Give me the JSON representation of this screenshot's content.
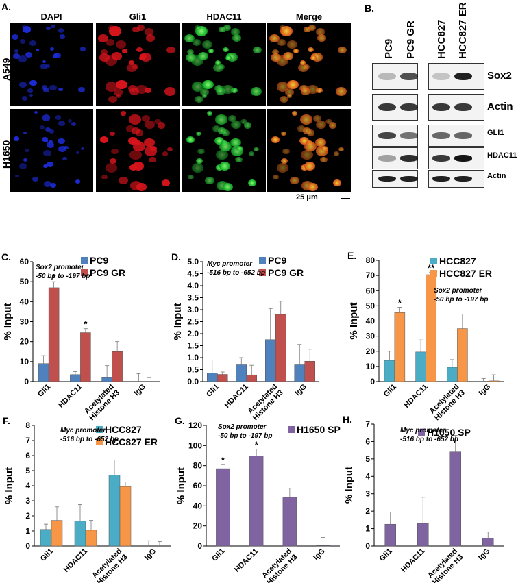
{
  "panel_a": {
    "label": "A.",
    "columns": [
      "DAPI",
      "Gli1",
      "HDAC11",
      "Merge"
    ],
    "rows": [
      "A549",
      "H1650"
    ],
    "scale": "25 μm"
  },
  "panel_b": {
    "label": "B.",
    "lanes": [
      "PC9",
      "PC9 GR",
      "HCC827",
      "HCC827 ER"
    ],
    "blots": [
      {
        "label": "Sox2",
        "bands": [
          0.25,
          0.7,
          0.2,
          0.9
        ]
      },
      {
        "label": "Actin",
        "bands": [
          0.8,
          0.8,
          0.8,
          0.8
        ]
      },
      {
        "label": "GLI1",
        "bands": [
          0.75,
          0.55,
          0.6,
          0.6
        ]
      },
      {
        "label": "HDAC11",
        "bands": [
          0.35,
          0.85,
          0.8,
          0.95
        ]
      },
      {
        "label": "Actin",
        "bands": [
          0.9,
          0.9,
          0.9,
          0.9
        ]
      }
    ]
  },
  "colors": {
    "blue": "#4f81bd",
    "red": "#c0504d",
    "teal": "#4bacc6",
    "orange": "#f79646",
    "purple": "#8064a2"
  },
  "chart_data": [
    {
      "panel": "C.",
      "type": "bar",
      "annotation": [
        "Sox2 promoter",
        "-50 bp to -197 bp"
      ],
      "ylabel": "% Input",
      "ylim": [
        0,
        60
      ],
      "yticks": [
        0,
        10,
        20,
        30,
        40,
        50,
        60
      ],
      "categories": [
        "Gli1",
        "HDAC11",
        "Acetylated Histone H3",
        "IgG"
      ],
      "series": [
        {
          "name": "PC9",
          "color": "#4f81bd",
          "values": [
            9,
            3.5,
            2,
            0
          ],
          "errors": [
            4,
            1.5,
            6,
            4
          ]
        },
        {
          "name": "PC9 GR",
          "color": "#c0504d",
          "values": [
            47,
            24.5,
            15,
            0
          ],
          "errors": [
            3,
            2,
            5,
            2
          ]
        }
      ],
      "stars": [
        {
          "category": 0,
          "series": 1,
          "text": "*"
        },
        {
          "category": 1,
          "series": 1,
          "text": "*"
        }
      ]
    },
    {
      "panel": "D.",
      "type": "bar",
      "annotation": [
        "Myc promoter",
        "-516 bp to -652 bp"
      ],
      "ylabel": "% Input",
      "ylim": [
        0,
        5
      ],
      "yticks": [
        0,
        0.5,
        1,
        1.5,
        2,
        2.5,
        3,
        3.5,
        4,
        4.5,
        5
      ],
      "ytick_decimals": 1,
      "categories": [
        "Gli1",
        "HDAC11",
        "Acetylated Histone H3",
        "IgG"
      ],
      "series": [
        {
          "name": "PC9",
          "color": "#4f81bd",
          "values": [
            0.35,
            0.7,
            1.75,
            0.7
          ],
          "errors": [
            0.55,
            0.3,
            1.3,
            0.85
          ]
        },
        {
          "name": "PC9 GR",
          "color": "#c0504d",
          "values": [
            0.3,
            0.28,
            2.8,
            0.85
          ],
          "errors": [
            0.1,
            0.4,
            0.55,
            0.5
          ]
        }
      ],
      "stars": []
    },
    {
      "panel": "E.",
      "type": "bar",
      "annotation": [
        "Sox2 promoter",
        "-50 bp to -197 bp"
      ],
      "ylabel": "% Input",
      "ylim": [
        0,
        80
      ],
      "yticks": [
        0,
        10,
        20,
        30,
        40,
        50,
        60,
        70,
        80
      ],
      "categories": [
        "Gli1",
        "HDAC11",
        "Acetylated Histone H3",
        "IgG"
      ],
      "series": [
        {
          "name": "HCC827",
          "color": "#4bacc6",
          "values": [
            14,
            19.5,
            9.5,
            0
          ],
          "errors": [
            6,
            8,
            5,
            2
          ]
        },
        {
          "name": "HCC827 ER",
          "color": "#f79646",
          "values": [
            45.5,
            70.5,
            35,
            0.5
          ],
          "errors": [
            3.5,
            1.5,
            9.5,
            4
          ]
        }
      ],
      "stars": [
        {
          "category": 0,
          "series": 1,
          "text": "*"
        },
        {
          "category": 1,
          "series": 1,
          "text": "**"
        }
      ]
    },
    {
      "panel": "F.",
      "type": "bar",
      "annotation": [
        "Myc promoter",
        "-516 bp to -652 bp"
      ],
      "ylabel": "% Input",
      "ylim": [
        0,
        8
      ],
      "yticks": [
        0,
        1,
        2,
        3,
        4,
        5,
        6,
        7,
        8
      ],
      "categories": [
        "Gli1",
        "HDAC11",
        "Acetylated Histone H3",
        "IgG"
      ],
      "series": [
        {
          "name": "HCC827",
          "color": "#4bacc6",
          "values": [
            1.1,
            1.65,
            4.7,
            0
          ],
          "errors": [
            0.35,
            1.1,
            1.0,
            0.35
          ]
        },
        {
          "name": "HCC827 ER",
          "color": "#f79646",
          "values": [
            1.7,
            1.05,
            3.95,
            0
          ],
          "errors": [
            0.9,
            0.65,
            0.3,
            0.3
          ]
        }
      ],
      "stars": []
    },
    {
      "panel": "G.",
      "type": "bar",
      "annotation": [
        "Sox2 promoter",
        "-50 bp to -197 bp"
      ],
      "ylabel": "% Input",
      "ylim": [
        0,
        120
      ],
      "yticks": [
        0,
        20,
        40,
        60,
        80,
        100,
        120
      ],
      "categories": [
        "Gli1",
        "HDAC11",
        "Acetylated Histone H3",
        "IgG"
      ],
      "series": [
        {
          "name": "H1650 SP",
          "color": "#8064a2",
          "values": [
            77,
            89.5,
            48.5,
            0.5
          ],
          "errors": [
            4,
            7,
            9,
            8
          ]
        }
      ],
      "stars": [
        {
          "category": 0,
          "series": 0,
          "text": "*"
        },
        {
          "category": 1,
          "series": 0,
          "text": "*"
        }
      ]
    },
    {
      "panel": "H.",
      "type": "bar",
      "annotation": [
        "Myc promoter",
        "-516 bp to -652 bp"
      ],
      "ylabel": "% Input",
      "ylim": [
        0,
        7
      ],
      "yticks": [
        0,
        1,
        2,
        3,
        4,
        5,
        6,
        7
      ],
      "categories": [
        "Gli1",
        "HDAC11",
        "Acetylated Histone H3",
        "IgG"
      ],
      "series": [
        {
          "name": "H1650 SP",
          "color": "#8064a2",
          "values": [
            1.25,
            1.3,
            5.4,
            0.45
          ],
          "errors": [
            0.7,
            1.5,
            0.95,
            0.35
          ]
        }
      ],
      "stars": []
    }
  ]
}
